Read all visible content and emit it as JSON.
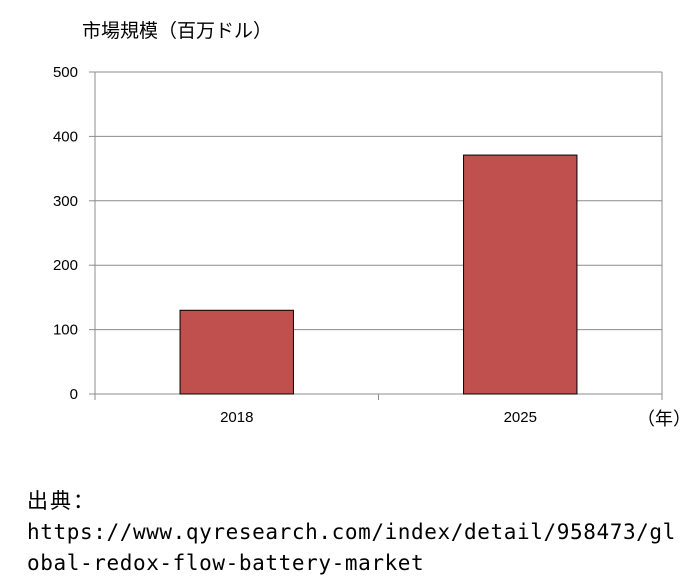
{
  "chart_data": {
    "type": "bar",
    "ylabel": "市場規模（百万ドル）",
    "xunit": "（年）",
    "categories": [
      "2018",
      "2025"
    ],
    "values": [
      130,
      371
    ],
    "ylim": [
      0,
      500
    ],
    "yticks": [
      "0",
      "100",
      "200",
      "300",
      "400",
      "500"
    ],
    "grid": true,
    "bar_color": "#c0504d"
  },
  "source": {
    "label": "出典：",
    "url": "https://www.qyresearch.com/index/detail/958473/global-redox-flow-battery-market"
  }
}
